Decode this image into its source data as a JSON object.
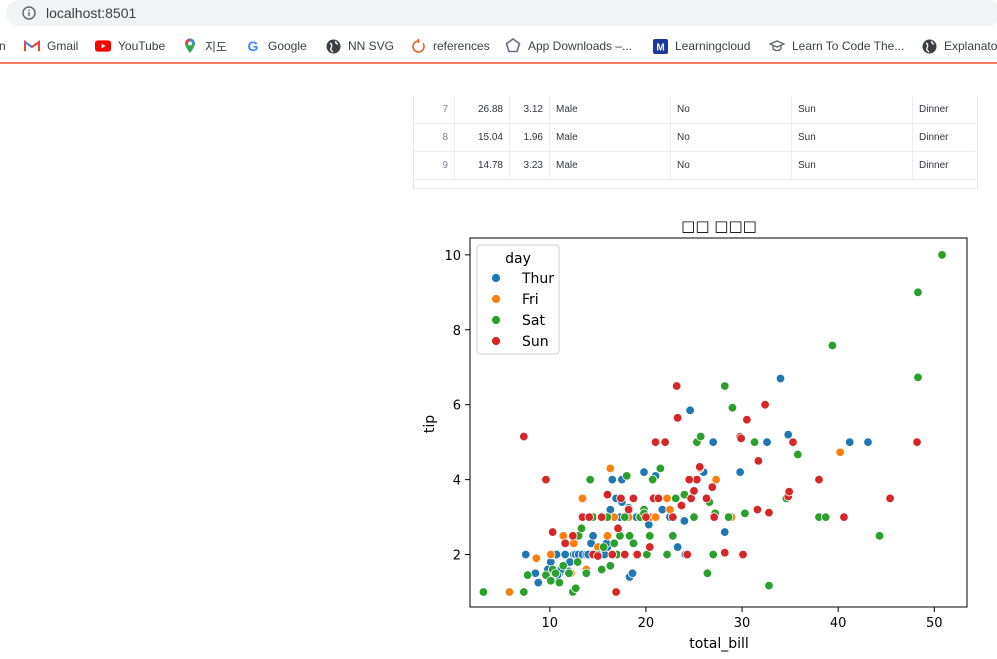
{
  "browser": {
    "url": "localhost:8501",
    "bookmarks": [
      {
        "label": "n",
        "icon": "partial-icon"
      },
      {
        "label": "Gmail",
        "icon": "gmail-icon"
      },
      {
        "label": "YouTube",
        "icon": "youtube-icon"
      },
      {
        "label": "지도",
        "icon": "maps-pin-icon"
      },
      {
        "label": "Google",
        "icon": "google-icon"
      },
      {
        "label": "NN SVG",
        "icon": "globe-icon"
      },
      {
        "label": "references",
        "icon": "refresh-ring-icon"
      },
      {
        "label": "App Downloads –...",
        "icon": "pentagon-icon"
      },
      {
        "label": "Learningcloud",
        "icon": "m-badge-icon"
      },
      {
        "label": "Learn To Code The...",
        "icon": "grad-cap-icon"
      },
      {
        "label": "Explanato",
        "icon": "globe-icon"
      }
    ]
  },
  "table": {
    "rows": [
      [
        "7",
        "26.88",
        "3.12",
        "Male",
        "No",
        "Sun",
        "Dinner"
      ],
      [
        "8",
        "15.04",
        "1.96",
        "Male",
        "No",
        "Sun",
        "Dinner"
      ],
      [
        "9",
        "14.78",
        "3.23",
        "Male",
        "No",
        "Sun",
        "Dinner"
      ]
    ]
  },
  "chart_data": {
    "type": "scatter",
    "title": "□□ □□□",
    "xlabel": "total_bill",
    "ylabel": "tip",
    "xlim": [
      1.7,
      53.4
    ],
    "ylim": [
      0.6,
      10.45
    ],
    "xticks": [
      10,
      20,
      30,
      40,
      50
    ],
    "yticks": [
      2,
      4,
      6,
      8,
      10
    ],
    "grid": false,
    "legend": {
      "title": "day",
      "placement": "top-left"
    },
    "series": [
      {
        "name": "Thur",
        "color": "#1f77b4",
        "points": [
          [
            7.5,
            2.0
          ],
          [
            8.5,
            1.5
          ],
          [
            8.8,
            1.25
          ],
          [
            10.1,
            1.8
          ],
          [
            10.3,
            2.0
          ],
          [
            10.7,
            2.0
          ],
          [
            11.0,
            1.5
          ],
          [
            11.2,
            1.6
          ],
          [
            11.6,
            2.0
          ],
          [
            12.1,
            1.8
          ],
          [
            12.5,
            2.0
          ],
          [
            12.7,
            2.0
          ],
          [
            13.0,
            2.0
          ],
          [
            13.4,
            2.0
          ],
          [
            13.8,
            2.0
          ],
          [
            14.0,
            2.0
          ],
          [
            14.3,
            2.3
          ],
          [
            14.5,
            2.5
          ],
          [
            14.8,
            2.0
          ],
          [
            15.4,
            2.0
          ],
          [
            15.7,
            2.0
          ],
          [
            16.0,
            2.2
          ],
          [
            16.3,
            3.2
          ],
          [
            16.5,
            4.0
          ],
          [
            16.9,
            3.5
          ],
          [
            17.3,
            3.0
          ],
          [
            17.5,
            3.4
          ],
          [
            18.0,
            3.0
          ],
          [
            18.3,
            1.4
          ],
          [
            18.6,
            1.5
          ],
          [
            19.0,
            3.0
          ],
          [
            19.4,
            3.0
          ],
          [
            19.8,
            4.2
          ],
          [
            20.0,
            3.0
          ],
          [
            20.3,
            2.8
          ],
          [
            21.0,
            4.1
          ],
          [
            21.7,
            3.2
          ],
          [
            22.5,
            3.0
          ],
          [
            23.3,
            2.2
          ],
          [
            24.0,
            2.9
          ],
          [
            24.1,
            2.0
          ],
          [
            24.6,
            5.85
          ],
          [
            26.0,
            4.2
          ],
          [
            27.0,
            5.0
          ],
          [
            28.2,
            2.6
          ],
          [
            29.8,
            4.2
          ],
          [
            32.6,
            5.0
          ],
          [
            34.0,
            6.7
          ],
          [
            34.8,
            5.2
          ],
          [
            41.2,
            5.0
          ],
          [
            43.1,
            5.0
          ],
          [
            15.9,
            2.3
          ],
          [
            13.0,
            2.5
          ],
          [
            17.5,
            4.0
          ],
          [
            18.2,
            3.25
          ],
          [
            12.0,
            1.55
          ],
          [
            10.8,
            1.45
          ],
          [
            9.8,
            1.6
          ]
        ]
      },
      {
        "name": "Fri",
        "color": "#ff7f0e",
        "points": [
          [
            5.8,
            1.0
          ],
          [
            8.6,
            1.9
          ],
          [
            10.1,
            2.0
          ],
          [
            11.4,
            2.5
          ],
          [
            12.2,
            1.5
          ],
          [
            12.5,
            2.3
          ],
          [
            13.4,
            3.5
          ],
          [
            13.8,
            1.6
          ],
          [
            15.4,
            3.0
          ],
          [
            16.3,
            4.3
          ],
          [
            16.7,
            3.0
          ],
          [
            18.2,
            3.0
          ],
          [
            20.5,
            3.0
          ],
          [
            21.0,
            3.0
          ],
          [
            22.2,
            3.5
          ],
          [
            22.5,
            3.2
          ],
          [
            25.6,
            4.3
          ],
          [
            27.3,
            4.0
          ],
          [
            28.9,
            3.0
          ],
          [
            40.2,
            4.73
          ],
          [
            15.0,
            2.2
          ],
          [
            16.0,
            2.5
          ]
        ]
      },
      {
        "name": "Sat",
        "color": "#2ca02c",
        "points": [
          [
            3.1,
            1.0
          ],
          [
            7.3,
            1.0
          ],
          [
            7.7,
            1.45
          ],
          [
            9.6,
            1.45
          ],
          [
            10.1,
            1.3
          ],
          [
            10.3,
            1.6
          ],
          [
            10.6,
            1.5
          ],
          [
            11.0,
            1.25
          ],
          [
            11.4,
            1.7
          ],
          [
            12.0,
            1.5
          ],
          [
            12.4,
            1.0
          ],
          [
            12.7,
            1.1
          ],
          [
            13.0,
            2.5
          ],
          [
            13.3,
            2.7
          ],
          [
            13.8,
            1.5
          ],
          [
            14.0,
            3.0
          ],
          [
            14.2,
            4.0
          ],
          [
            14.5,
            3.0
          ],
          [
            14.7,
            2.0
          ],
          [
            15.0,
            2.0
          ],
          [
            15.3,
            3.0
          ],
          [
            15.6,
            2.2
          ],
          [
            16.0,
            3.0
          ],
          [
            16.3,
            1.7
          ],
          [
            16.7,
            2.3
          ],
          [
            17.0,
            2.0
          ],
          [
            17.3,
            2.5
          ],
          [
            17.8,
            3.0
          ],
          [
            18.0,
            4.1
          ],
          [
            18.3,
            2.5
          ],
          [
            18.7,
            2.3
          ],
          [
            19.0,
            2.0
          ],
          [
            19.4,
            3.0
          ],
          [
            19.8,
            3.2
          ],
          [
            20.1,
            2.0
          ],
          [
            20.4,
            2.5
          ],
          [
            20.7,
            4.0
          ],
          [
            21.0,
            3.5
          ],
          [
            21.5,
            4.3
          ],
          [
            22.2,
            2.0
          ],
          [
            22.8,
            2.5
          ],
          [
            23.1,
            3.5
          ],
          [
            24.0,
            3.6
          ],
          [
            24.3,
            2.0
          ],
          [
            25.0,
            3.0
          ],
          [
            25.3,
            5.0
          ],
          [
            25.7,
            5.15
          ],
          [
            26.4,
            1.5
          ],
          [
            26.6,
            3.4
          ],
          [
            27.0,
            2.0
          ],
          [
            27.2,
            3.1
          ],
          [
            28.2,
            6.5
          ],
          [
            28.6,
            3.0
          ],
          [
            29.0,
            5.92
          ],
          [
            30.0,
            2.0
          ],
          [
            30.3,
            3.1
          ],
          [
            31.3,
            5.0
          ],
          [
            32.8,
            1.17
          ],
          [
            34.6,
            3.5
          ],
          [
            35.8,
            4.67
          ],
          [
            38.0,
            3.0
          ],
          [
            38.7,
            3.0
          ],
          [
            39.4,
            7.58
          ],
          [
            44.3,
            2.5
          ],
          [
            48.3,
            9.0
          ],
          [
            48.3,
            6.73
          ],
          [
            50.8,
            10.0
          ],
          [
            19.8,
            3.1
          ],
          [
            15.4,
            1.6
          ],
          [
            12.9,
            1.8
          ]
        ]
      },
      {
        "name": "Sun",
        "color": "#d62728",
        "points": [
          [
            7.3,
            5.15
          ],
          [
            9.6,
            4.0
          ],
          [
            10.3,
            2.6
          ],
          [
            11.6,
            2.3
          ],
          [
            12.4,
            2.5
          ],
          [
            13.4,
            3.0
          ],
          [
            14.1,
            3.0
          ],
          [
            14.5,
            2.0
          ],
          [
            15.0,
            1.96
          ],
          [
            15.4,
            3.0
          ],
          [
            16.0,
            3.6
          ],
          [
            16.5,
            2.0
          ],
          [
            16.9,
            1.0
          ],
          [
            17.1,
            2.7
          ],
          [
            17.4,
            3.5
          ],
          [
            17.8,
            2.0
          ],
          [
            18.2,
            3.2
          ],
          [
            18.7,
            3.5
          ],
          [
            19.1,
            2.0
          ],
          [
            20.0,
            3.0
          ],
          [
            20.4,
            2.2
          ],
          [
            20.8,
            3.5
          ],
          [
            21.0,
            5.0
          ],
          [
            21.3,
            3.5
          ],
          [
            22.0,
            5.0
          ],
          [
            22.8,
            3.0
          ],
          [
            23.2,
            6.5
          ],
          [
            23.3,
            5.65
          ],
          [
            23.7,
            3.31
          ],
          [
            24.3,
            2.0
          ],
          [
            24.7,
            3.5
          ],
          [
            25.0,
            3.7
          ],
          [
            25.3,
            4.0
          ],
          [
            25.6,
            4.34
          ],
          [
            26.3,
            3.5
          ],
          [
            27.1,
            3.0
          ],
          [
            28.2,
            2.05
          ],
          [
            29.8,
            5.14
          ],
          [
            29.9,
            5.1
          ],
          [
            30.1,
            2.0
          ],
          [
            30.5,
            5.6
          ],
          [
            31.6,
            3.2
          ],
          [
            31.7,
            4.5
          ],
          [
            32.4,
            6.0
          ],
          [
            32.8,
            3.12
          ],
          [
            34.8,
            3.55
          ],
          [
            34.9,
            3.68
          ],
          [
            35.3,
            5.0
          ],
          [
            38.0,
            4.0
          ],
          [
            40.6,
            3.0
          ],
          [
            45.4,
            3.5
          ],
          [
            48.2,
            5.0
          ],
          [
            24.5,
            4.0
          ],
          [
            26.9,
            3.8
          ]
        ]
      }
    ]
  }
}
